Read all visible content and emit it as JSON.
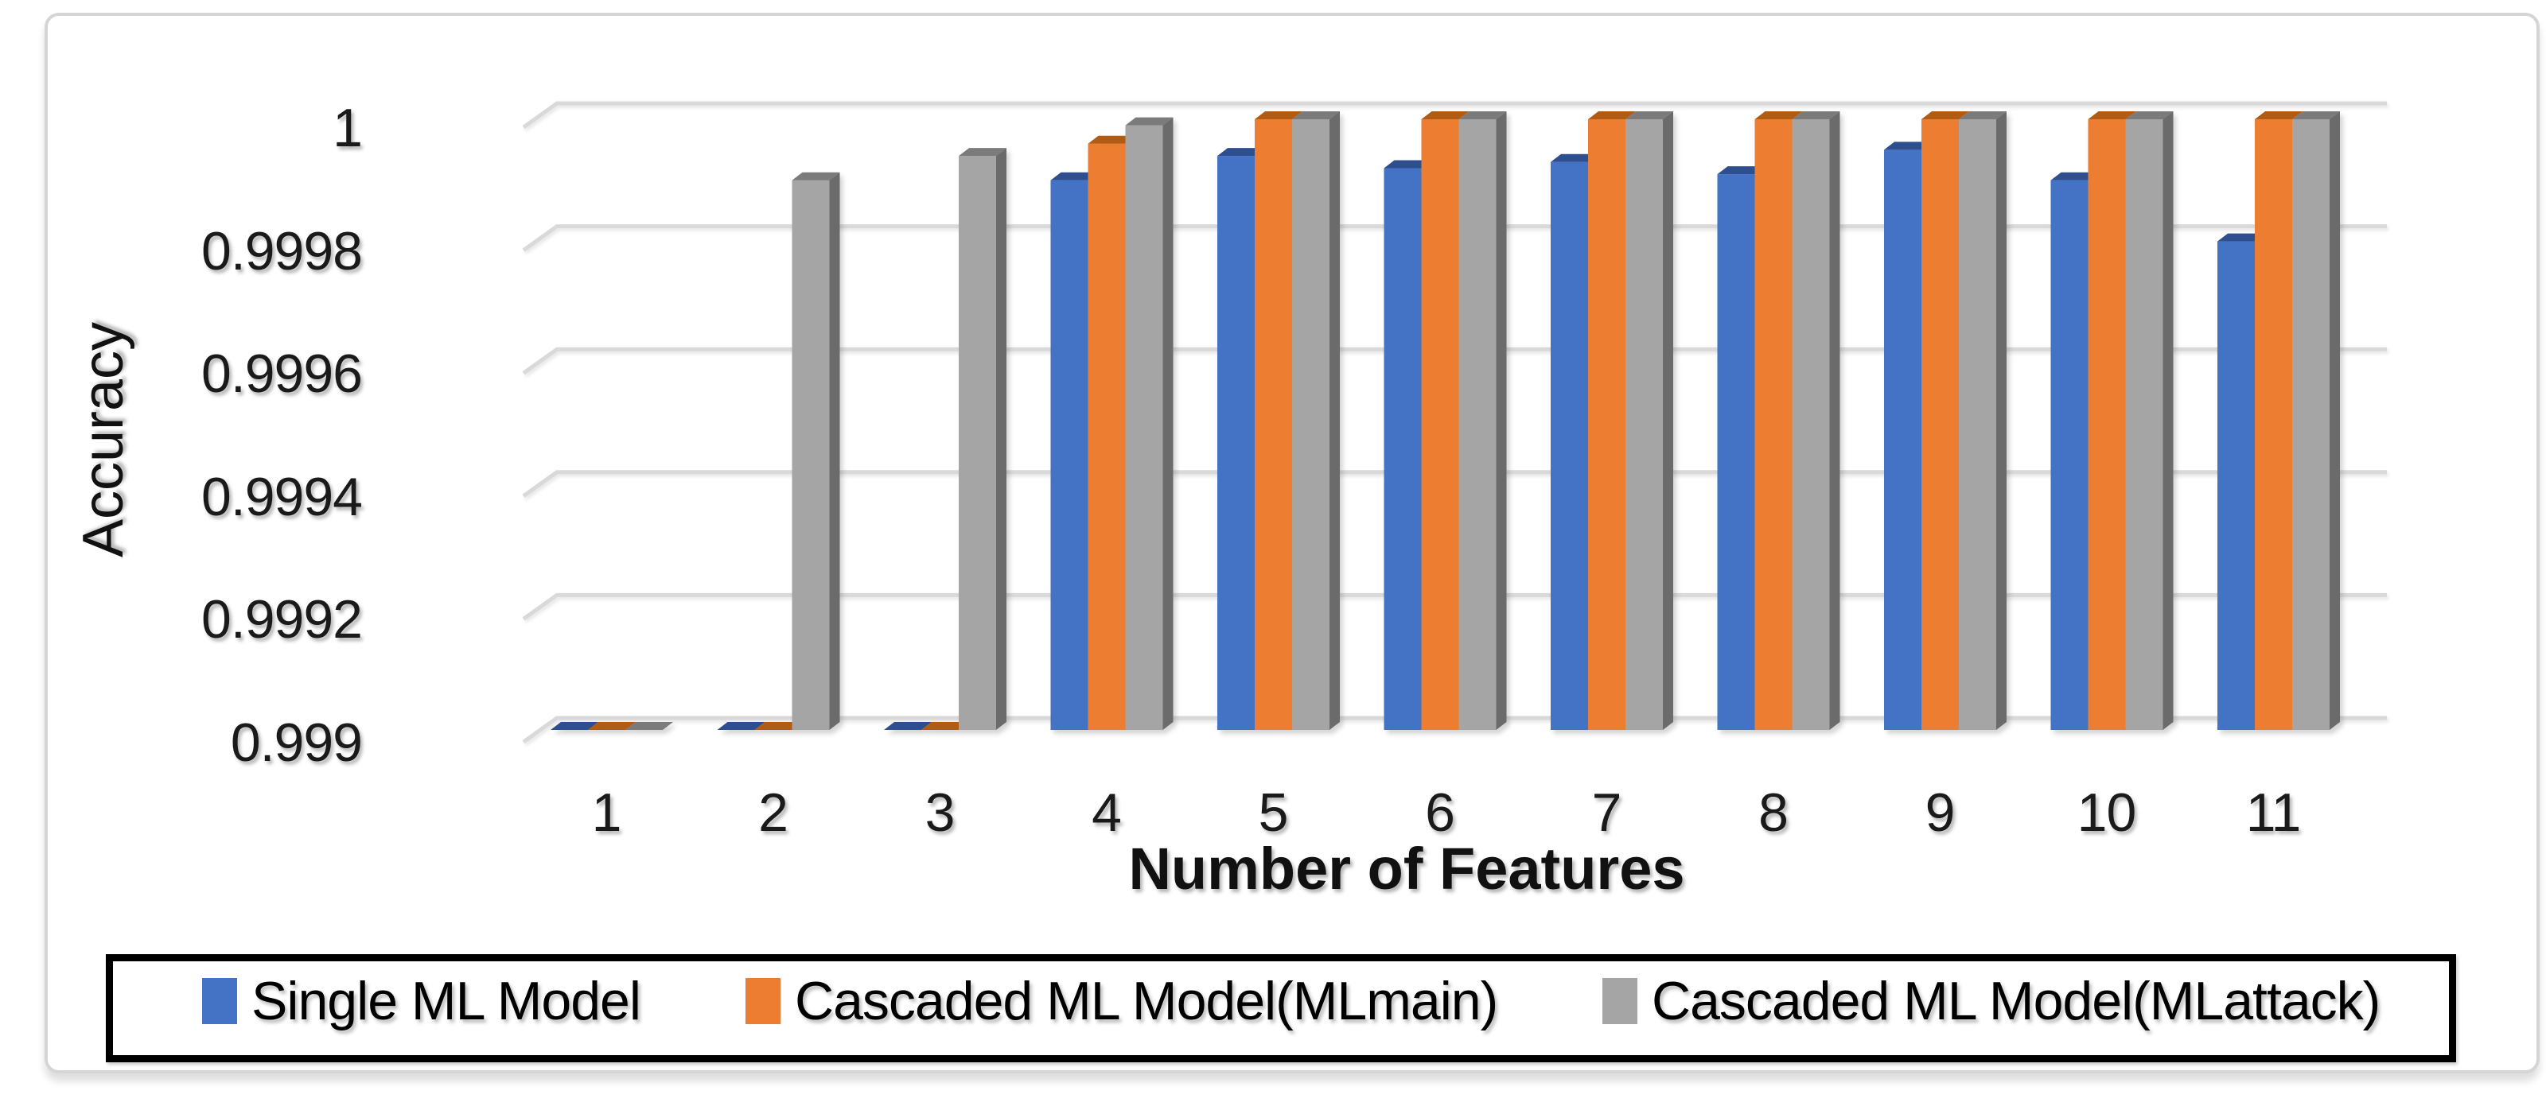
{
  "chart_data": {
    "type": "bar",
    "subtype": "3d-clustered-column",
    "title": "",
    "xlabel": "Number of Features",
    "ylabel": "Accuracy",
    "categories": [
      "1",
      "2",
      "3",
      "4",
      "5",
      "6",
      "7",
      "8",
      "9",
      "10",
      "11"
    ],
    "series": [
      {
        "name": "Single ML Model",
        "color": "#4472C4",
        "color_top": "#2E4F8F",
        "color_side": "#27437A",
        "values": [
          0.999,
          0.999,
          0.999,
          0.9999,
          0.99994,
          0.99992,
          0.99993,
          0.99991,
          0.99995,
          0.9999,
          0.9998
        ]
      },
      {
        "name": "Cascaded ML Model(MLmain)",
        "color": "#ED7D31",
        "color_top": "#B25B12",
        "color_side": "#9E500F",
        "values": [
          0.999,
          0.999,
          0.999,
          0.99996,
          1,
          1,
          1,
          1,
          1,
          1,
          1
        ]
      },
      {
        "name": "Cascaded ML Model(MLattack)",
        "color": "#A5A5A5",
        "color_top": "#7B7B7B",
        "color_side": "#6B6B6B",
        "values": [
          0.999,
          0.9999,
          0.99994,
          0.99999,
          1,
          1,
          1,
          1,
          1,
          1,
          1
        ]
      }
    ],
    "ylim": [
      0.999,
      1.0
    ],
    "yticks": [
      1,
      0.9998,
      0.9996,
      0.9994,
      0.9992,
      0.999
    ],
    "ytick_labels": [
      "1",
      "0.9998",
      "0.9996",
      "0.9994",
      "0.9992",
      "0.999"
    ],
    "grid": true,
    "legend_position": "bottom",
    "gridline_color": "#D9D9D9",
    "background_color": "#FFFFFF",
    "frame_border_color": "#D5D5D5",
    "legend_border_color": "#000000",
    "text_color": "#1A1A1A"
  }
}
